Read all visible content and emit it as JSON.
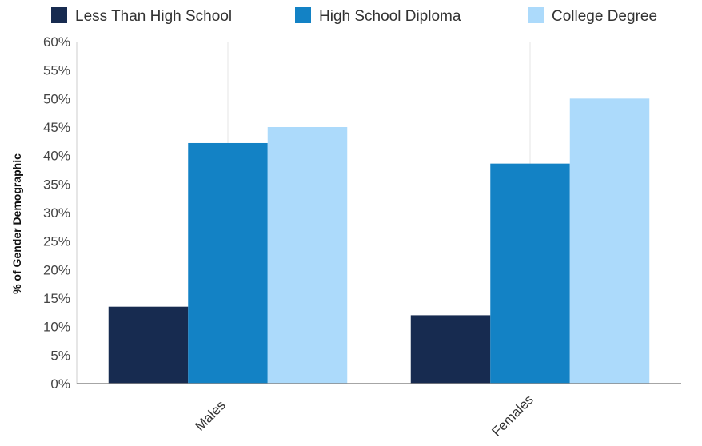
{
  "chart_data": {
    "type": "bar",
    "categories": [
      "Males",
      "Females"
    ],
    "series": [
      {
        "name": "Less Than High School",
        "values": [
          13.5,
          12.0
        ],
        "color": "#172b50"
      },
      {
        "name": "High School Diploma",
        "values": [
          42.2,
          38.6
        ],
        "color": "#1382c5"
      },
      {
        "name": "College Degree",
        "values": [
          45.0,
          50.0
        ],
        "color": "#acdafb"
      }
    ],
    "ylabel": "% of Gender Demographic",
    "ylim": [
      0,
      60
    ],
    "yticks": [
      0,
      5,
      10,
      15,
      20,
      25,
      30,
      35,
      40,
      45,
      50,
      55,
      60
    ],
    "ytick_labels": [
      "0%",
      "5%",
      "10%",
      "15%",
      "20%",
      "25%",
      "30%",
      "35%",
      "40%",
      "45%",
      "50%",
      "55%",
      "60%"
    ],
    "grid": "vertical",
    "legend_position": "top"
  }
}
